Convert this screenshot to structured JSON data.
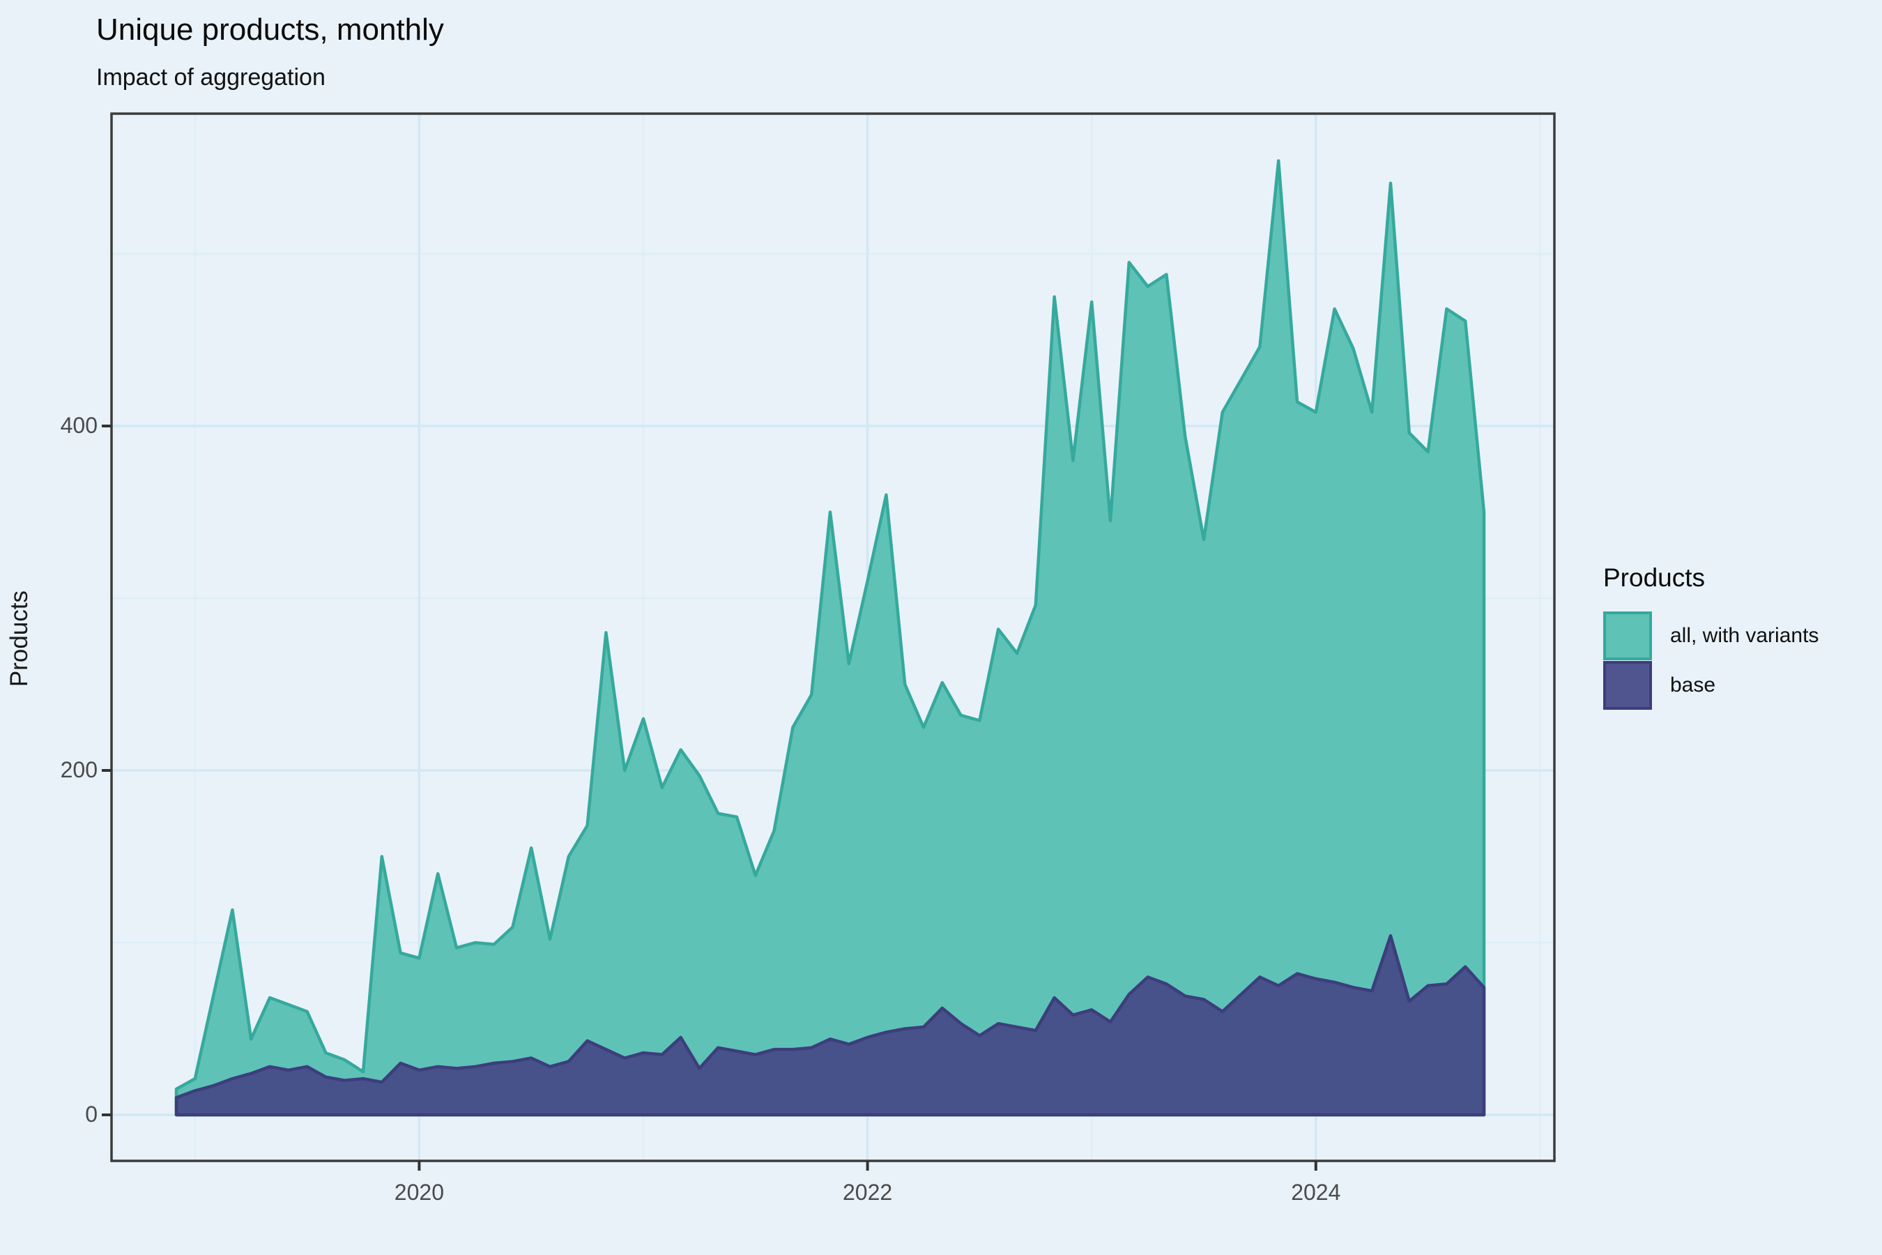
{
  "chart_data": {
    "type": "area",
    "title": "Unique products, monthly",
    "subtitle": "Impact of aggregation",
    "ylabel": "Products",
    "xlabel": "",
    "x_ticks": [
      "2020",
      "2022",
      "2024"
    ],
    "y_ticks": [
      "0",
      "200",
      "400"
    ],
    "x_major_years": [
      2020,
      2022,
      2024
    ],
    "x_minor_years": [
      2019,
      2021,
      2023,
      2025
    ],
    "y_major": [
      0,
      200,
      400
    ],
    "y_minor": [
      100,
      300,
      500
    ],
    "ylim": [
      0,
      560
    ],
    "grid": "on",
    "legend_position": "right",
    "x_start_month": "2018-12",
    "x_end_month": "2024-10",
    "months": [
      "2018-12",
      "2019-01",
      "2019-02",
      "2019-03",
      "2019-04",
      "2019-05",
      "2019-06",
      "2019-07",
      "2019-08",
      "2019-09",
      "2019-10",
      "2019-11",
      "2019-12",
      "2020-01",
      "2020-02",
      "2020-03",
      "2020-04",
      "2020-05",
      "2020-06",
      "2020-07",
      "2020-08",
      "2020-09",
      "2020-10",
      "2020-11",
      "2020-12",
      "2021-01",
      "2021-02",
      "2021-03",
      "2021-04",
      "2021-05",
      "2021-06",
      "2021-07",
      "2021-08",
      "2021-09",
      "2021-10",
      "2021-11",
      "2021-12",
      "2022-01",
      "2022-02",
      "2022-03",
      "2022-04",
      "2022-05",
      "2022-06",
      "2022-07",
      "2022-08",
      "2022-09",
      "2022-10",
      "2022-11",
      "2022-12",
      "2023-01",
      "2023-02",
      "2023-03",
      "2023-04",
      "2023-05",
      "2023-06",
      "2023-07",
      "2023-08",
      "2023-09",
      "2023-10",
      "2023-11",
      "2023-12",
      "2024-01",
      "2024-02",
      "2024-03",
      "2024-04",
      "2024-05",
      "2024-06",
      "2024-07",
      "2024-08",
      "2024-09",
      "2024-10"
    ],
    "series": [
      {
        "name": "all, with variants",
        "fill": "#5fc2b7",
        "stroke": "#35a99d",
        "values": [
          15,
          21,
          70,
          119,
          44,
          68,
          64,
          60,
          36,
          32,
          25,
          150,
          94,
          91,
          140,
          97,
          100,
          99,
          109,
          155,
          102,
          150,
          168,
          280,
          200,
          230,
          190,
          212,
          197,
          175,
          173,
          139,
          165,
          225,
          244,
          350,
          262,
          310,
          360,
          250,
          225,
          251,
          232,
          229,
          282,
          268,
          296,
          475,
          380,
          472,
          345,
          495,
          481,
          488,
          394,
          334,
          408,
          427,
          446,
          554,
          414,
          408,
          468,
          445,
          408,
          541,
          396,
          385,
          468,
          461,
          350
        ]
      },
      {
        "name": "base",
        "fill": "#47518a",
        "stroke": "#3c3e7c",
        "values": [
          10,
          14,
          17,
          21,
          24,
          28,
          26,
          28,
          22,
          20,
          21,
          19,
          30,
          26,
          28,
          27,
          28,
          30,
          31,
          33,
          28,
          31,
          43,
          38,
          33,
          36,
          35,
          45,
          27,
          39,
          37,
          35,
          38,
          38,
          39,
          44,
          41,
          45,
          48,
          50,
          51,
          62,
          53,
          46,
          53,
          51,
          49,
          68,
          58,
          61,
          54,
          70,
          80,
          76,
          69,
          67,
          60,
          70,
          80,
          75,
          82,
          79,
          77,
          74,
          72,
          104,
          66,
          75,
          76,
          86,
          74
        ]
      }
    ],
    "legend": {
      "title": "Products",
      "entries": [
        {
          "label": "all, with variants",
          "fill": "#5fc2b7",
          "stroke": "#35a99d"
        },
        {
          "label": "base",
          "fill": "#51558f",
          "stroke": "#3c3e7c"
        }
      ]
    },
    "colors": {
      "background": "#e9f2f9",
      "grid_major": "#d3e8f5",
      "grid_minor": "#deeef8",
      "panel_border": "#3c3c3c",
      "tick_mark": "#333333",
      "tick_label": "#4a4a4a",
      "title_text": "#0a0a0a"
    }
  }
}
